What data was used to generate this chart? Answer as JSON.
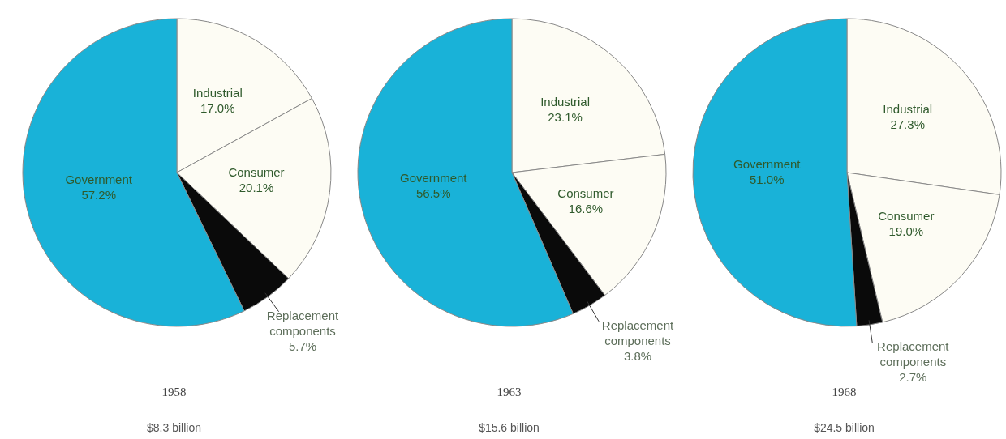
{
  "chart_data": [
    {
      "type": "pie",
      "title": "1958",
      "subtitle": "$8.3 billion",
      "categories": [
        "Industrial",
        "Consumer",
        "Replacement components",
        "Government"
      ],
      "values": [
        17.0,
        20.1,
        5.7,
        57.2
      ],
      "value_labels": [
        "17.0%",
        "20.1%",
        "5.7%",
        "57.2%"
      ],
      "colors": [
        "#fdfcf4",
        "#fdfcf4",
        "#0a0a0a",
        "#19b2d8"
      ]
    },
    {
      "type": "pie",
      "title": "1963",
      "subtitle": "$15.6 billion",
      "categories": [
        "Industrial",
        "Consumer",
        "Replacement components",
        "Government"
      ],
      "values": [
        23.1,
        16.6,
        3.8,
        56.5
      ],
      "value_labels": [
        "23.1%",
        "16.6%",
        "3.8%",
        "56.5%"
      ],
      "colors": [
        "#fdfcf4",
        "#fdfcf4",
        "#0a0a0a",
        "#19b2d8"
      ]
    },
    {
      "type": "pie",
      "title": "1968",
      "subtitle": "$24.5 billion",
      "categories": [
        "Industrial",
        "Consumer",
        "Replacement components",
        "Government"
      ],
      "values": [
        27.3,
        19.0,
        2.7,
        51.0
      ],
      "value_labels": [
        "27.3%",
        "19.0%",
        "2.7%",
        "51.0%"
      ],
      "colors": [
        "#fdfcf4",
        "#fdfcf4",
        "#0a0a0a",
        "#19b2d8"
      ]
    }
  ]
}
